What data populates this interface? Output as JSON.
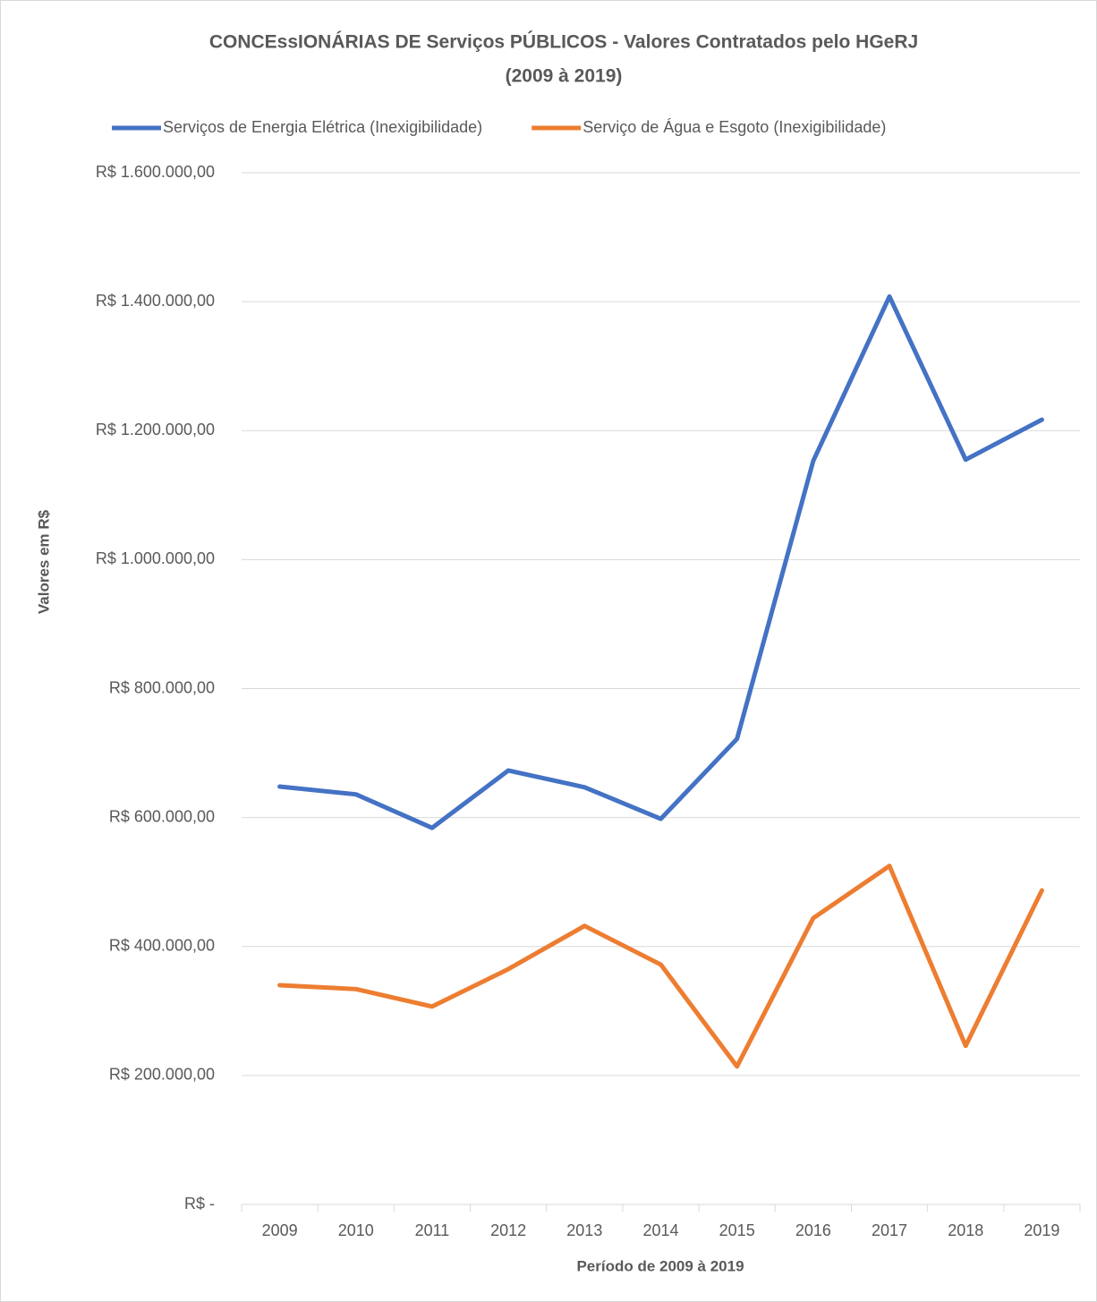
{
  "chart_data": {
    "type": "line",
    "title": [
      "CONCEssIONÁRIAS DE Serviços PÚBLICOS - Valores Contratados pelo HGeRJ",
      "(2009 à 2019)"
    ],
    "x_label": "Período de 2009 à 2019",
    "y_label": "Valores em R$",
    "categories": [
      "2009",
      "2010",
      "2011",
      "2012",
      "2013",
      "2014",
      "2015",
      "2016",
      "2017",
      "2018",
      "2019"
    ],
    "series": [
      {
        "name": "Serviços de Energia Elétrica (Inexigibilidade)",
        "color": "#4472c4",
        "values": [
          648000,
          636000,
          584000,
          673000,
          647000,
          598000,
          722000,
          1153000,
          1408000,
          1155000,
          1217000
        ]
      },
      {
        "name": "Serviço de Água e Esgoto (Inexigibilidade)",
        "color": "#ed7d31",
        "values": [
          340000,
          334000,
          307000,
          365000,
          432000,
          372000,
          214000,
          444000,
          525000,
          246000,
          487000
        ]
      }
    ],
    "ylim": [
      0,
      1600000
    ],
    "yticks": [
      {
        "value": 0,
        "label": "R$ -"
      },
      {
        "value": 200000,
        "label": "R$ 200.000,00"
      },
      {
        "value": 400000,
        "label": "R$ 400.000,00"
      },
      {
        "value": 600000,
        "label": "R$ 600.000,00"
      },
      {
        "value": 800000,
        "label": "R$ 800.000,00"
      },
      {
        "value": 1000000,
        "label": "R$ 1.000.000,00"
      },
      {
        "value": 1200000,
        "label": "R$ 1.200.000,00"
      },
      {
        "value": 1400000,
        "label": "R$ 1.400.000,00"
      },
      {
        "value": 1600000,
        "label": "R$ 1.600.000,00"
      }
    ],
    "grid": true,
    "legend": "top"
  }
}
